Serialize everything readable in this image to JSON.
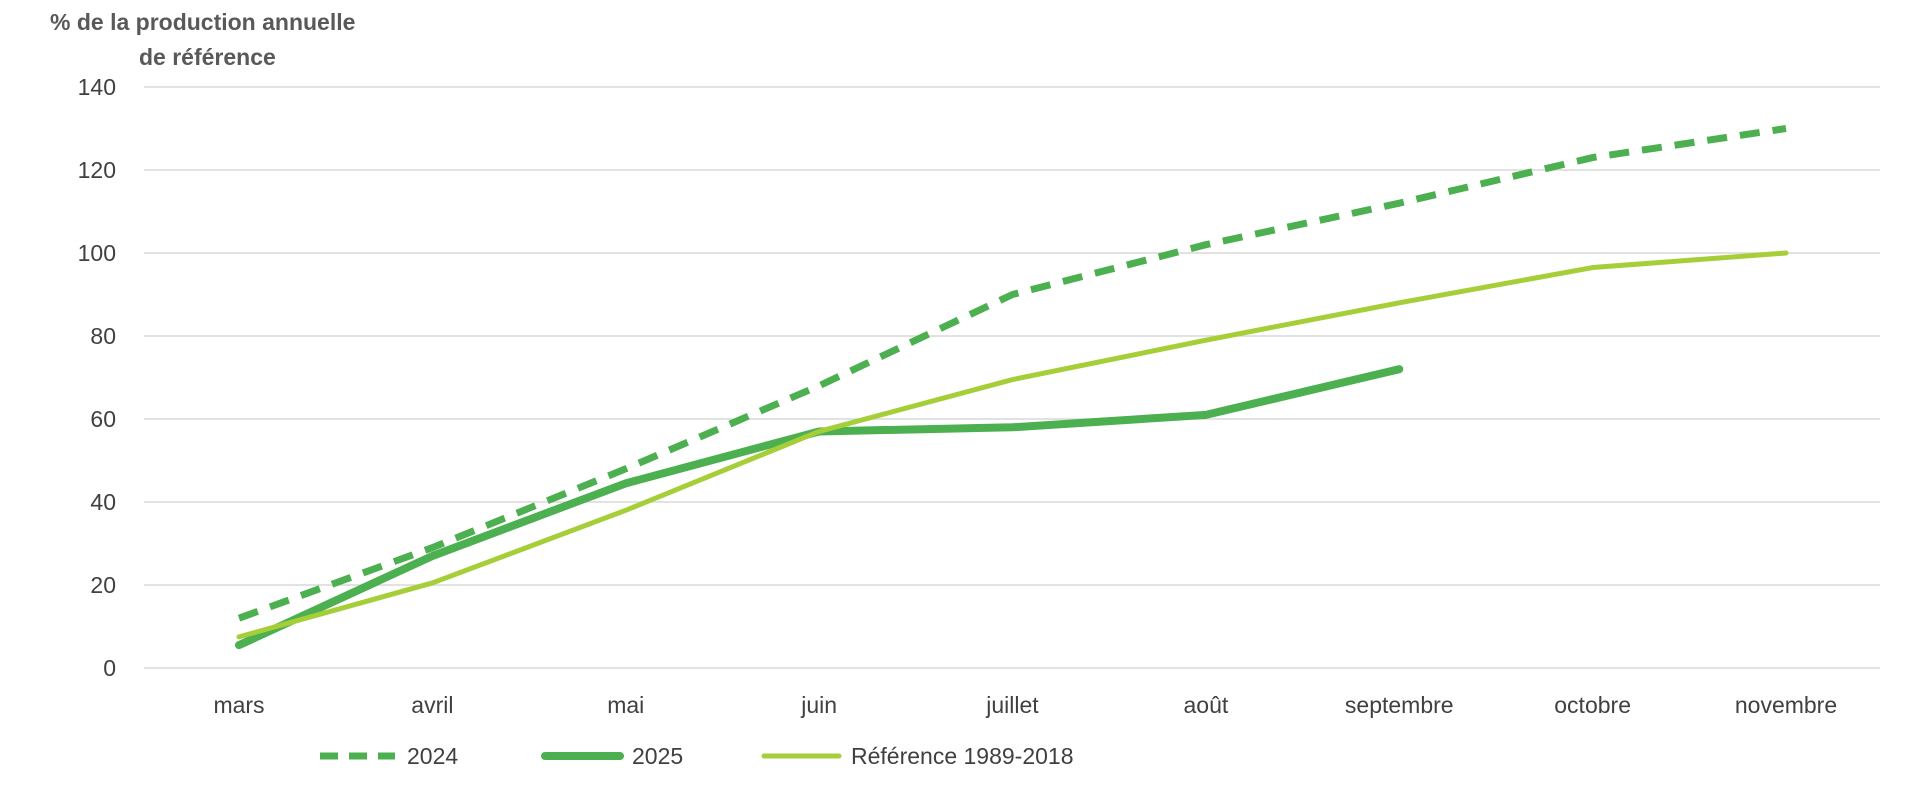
{
  "chart_data": {
    "type": "line",
    "ylabel_lines": [
      "% de  la production  annuelle",
      "de référence"
    ],
    "categories": [
      "mars",
      "avril",
      "mai",
      "juin",
      "juillet",
      "août",
      "septembre",
      "octobre",
      "novembre"
    ],
    "ylim": [
      0,
      140
    ],
    "yticks": [
      0,
      20,
      40,
      60,
      80,
      100,
      120,
      140
    ],
    "grid": true,
    "legend_position": "bottom-left",
    "series": [
      {
        "name": "2024",
        "style": "dashed",
        "color": "#4CAF50",
        "values": [
          12,
          29,
          48,
          68,
          90,
          102,
          112,
          123,
          130
        ]
      },
      {
        "name": "2025",
        "style": "solid-thick",
        "color": "#4CAF50",
        "values": [
          5.5,
          27,
          44.5,
          57,
          58,
          61,
          72,
          null,
          null
        ]
      },
      {
        "name": "Référence 1989-2018",
        "style": "solid",
        "color": "#A6CE39",
        "values": [
          7.5,
          20.5,
          38,
          57,
          69.5,
          79,
          88,
          96.5,
          100
        ]
      }
    ]
  }
}
